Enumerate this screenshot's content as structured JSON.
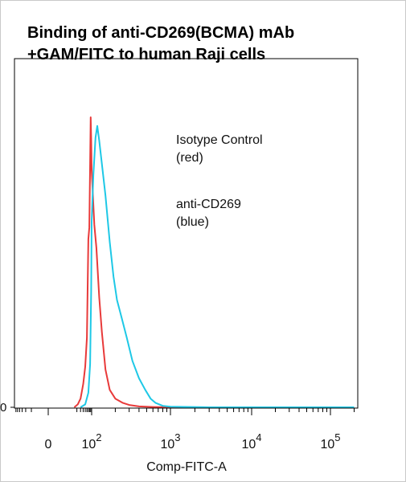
{
  "chart_data": {
    "type": "line",
    "title_lines": [
      "Binding of anti-CD269(BCMA) mAb",
      "+GAM/FITC to human Raji cells"
    ],
    "xlabel": "Comp-FITC-A",
    "ylabel": "",
    "x_scale": "log",
    "xlim": [
      -30,
      200000
    ],
    "y_tick_labels": [
      "0"
    ],
    "x_tick_labels": [
      {
        "base": "0",
        "exp": ""
      },
      {
        "base": "10",
        "exp": "2"
      },
      {
        "base": "10",
        "exp": "3"
      },
      {
        "base": "10",
        "exp": "4"
      },
      {
        "base": "10",
        "exp": "5"
      }
    ],
    "annotations": [
      {
        "lines": [
          "Isotype Control",
          "(red)"
        ]
      },
      {
        "lines": [
          "anti-CD269",
          "(blue)"
        ]
      }
    ],
    "ylim": [
      0,
      100
    ],
    "series": [
      {
        "name": "Isotype Control",
        "color": "#e83a3a",
        "x": [
          15,
          22,
          30,
          40,
          50,
          60,
          70,
          78,
          85,
          90,
          95,
          100,
          108,
          115,
          125,
          135,
          150,
          170,
          200,
          250,
          300,
          400,
          600,
          1000,
          3000,
          20000,
          200000
        ],
        "y": [
          0,
          1,
          3,
          8,
          14,
          24,
          58,
          62,
          84,
          100,
          93,
          82,
          63,
          55,
          38,
          26,
          13,
          6,
          3,
          1.5,
          0.8,
          0.3,
          0.1,
          0,
          0,
          0,
          0
        ]
      },
      {
        "name": "anti-CD269",
        "color": "#1ec8e6",
        "x": [
          30,
          50,
          70,
          85,
          95,
          100,
          105,
          112,
          118,
          125,
          135,
          150,
          170,
          190,
          210,
          240,
          280,
          330,
          400,
          480,
          560,
          650,
          800,
          1000,
          3000,
          20000,
          200000
        ],
        "y": [
          0,
          1,
          5,
          15,
          40,
          64,
          80,
          93,
          97,
          92,
          84,
          73,
          57,
          45,
          37,
          31,
          24,
          16,
          10,
          6,
          3,
          1.5,
          0.5,
          0.2,
          0,
          0,
          0
        ]
      }
    ]
  }
}
